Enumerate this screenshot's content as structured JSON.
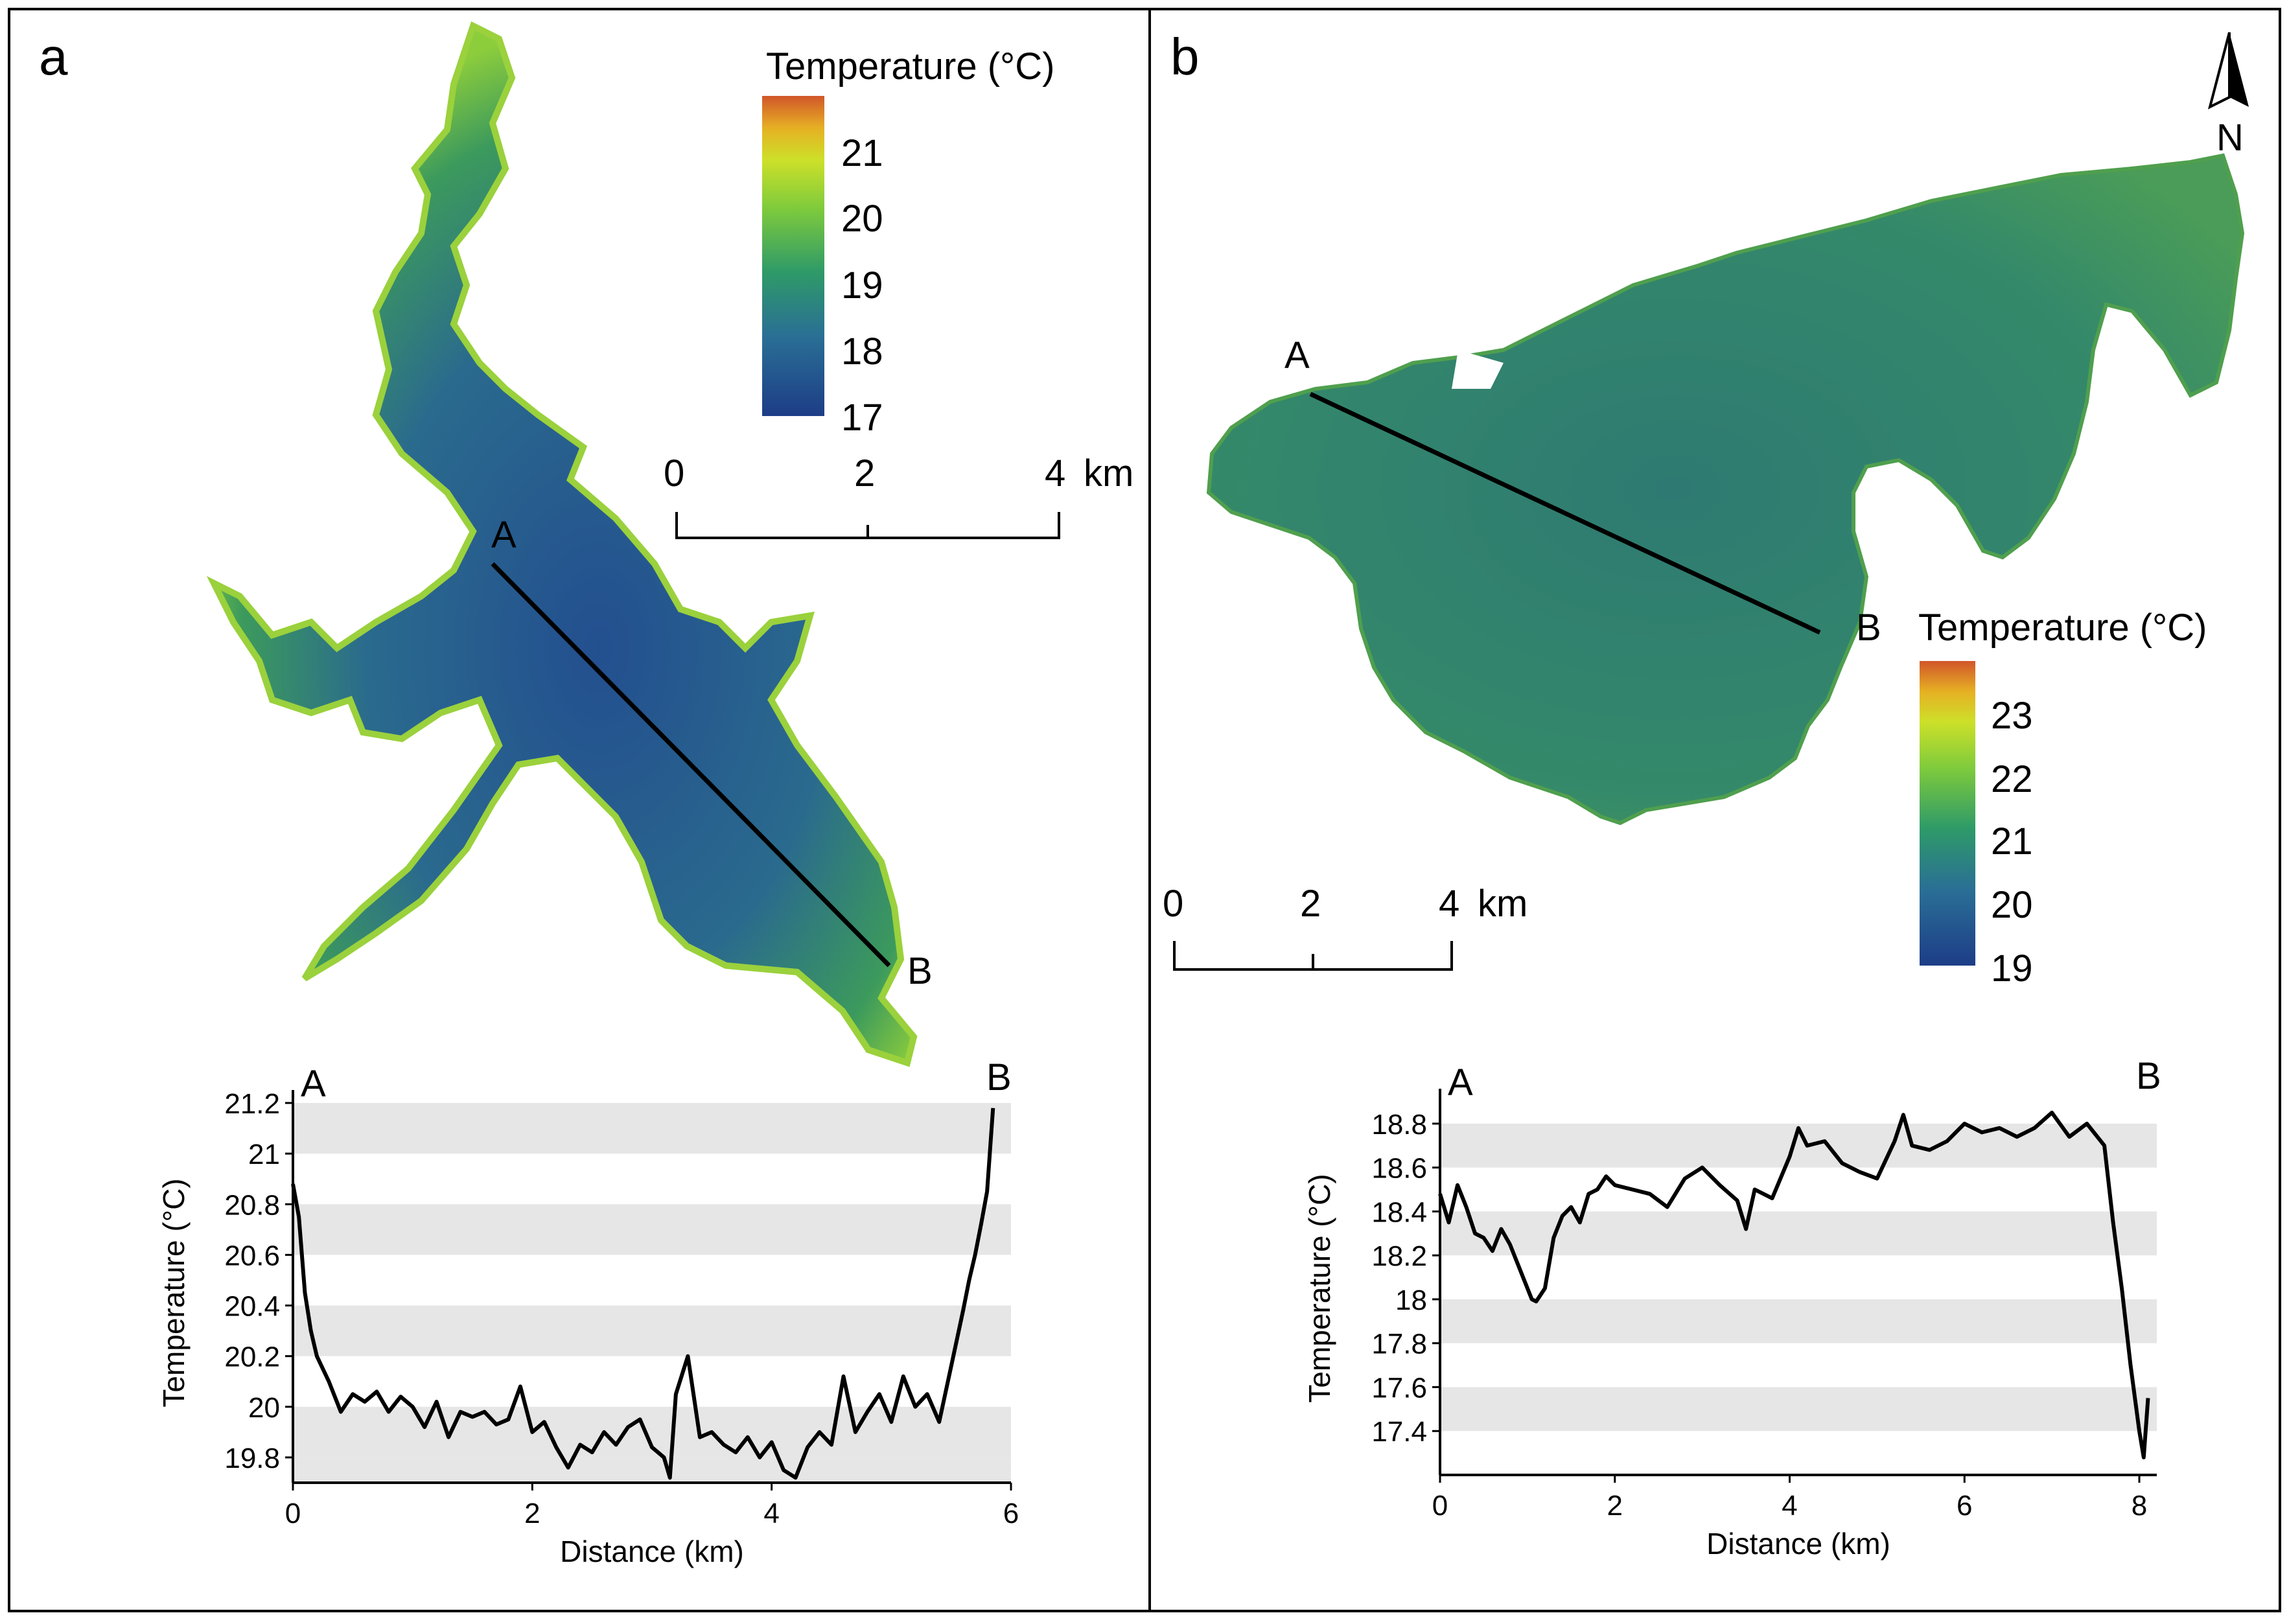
{
  "panels": [
    {
      "letter": "a",
      "colorbar": {
        "title": "Temperature (°C)",
        "ticks": [
          "21",
          "20",
          "19",
          "18",
          "17"
        ]
      },
      "scalebar": {
        "labels": [
          "0",
          "2",
          "4"
        ],
        "unit": "km"
      },
      "transect": {
        "start": "A",
        "end": "B"
      }
    },
    {
      "letter": "b",
      "colorbar": {
        "title": "Temperature (°C)",
        "ticks": [
          "23",
          "22",
          "21",
          "20",
          "19"
        ]
      },
      "scalebar": {
        "labels": [
          "0",
          "2",
          "4"
        ],
        "unit": "km"
      },
      "transect": {
        "start": "A",
        "end": "B"
      },
      "north_arrow": "N"
    }
  ],
  "colors": {
    "line": "#000000",
    "band": "#e6e6e6",
    "deep": "#1f4f8c",
    "mid": "#2e8a5c",
    "shallow": "#8ccd3c",
    "warm": "#e0b020",
    "hot": "#cc5a2a"
  },
  "chart_data": [
    {
      "type": "line",
      "panel": "a",
      "title": "",
      "xlabel": "Distance (km)",
      "ylabel": "Temperature (°C)",
      "xlim": [
        0,
        6
      ],
      "ylim": [
        19.7,
        21.2
      ],
      "xticks": [
        0,
        2,
        4,
        6
      ],
      "yticks": [
        19.8,
        20,
        20.2,
        20.4,
        20.6,
        20.8,
        21,
        21.2
      ],
      "grid": "alternating horizontal bands",
      "end_labels": [
        "A",
        "B"
      ],
      "x": [
        0,
        0.05,
        0.1,
        0.15,
        0.2,
        0.3,
        0.4,
        0.5,
        0.6,
        0.7,
        0.8,
        0.9,
        1.0,
        1.1,
        1.2,
        1.3,
        1.4,
        1.5,
        1.6,
        1.7,
        1.8,
        1.9,
        2.0,
        2.1,
        2.2,
        2.3,
        2.4,
        2.5,
        2.6,
        2.7,
        2.8,
        2.9,
        3.0,
        3.1,
        3.15,
        3.2,
        3.3,
        3.4,
        3.5,
        3.6,
        3.7,
        3.8,
        3.9,
        4.0,
        4.1,
        4.2,
        4.3,
        4.4,
        4.5,
        4.6,
        4.7,
        4.8,
        4.9,
        5.0,
        5.1,
        5.2,
        5.3,
        5.4,
        5.5,
        5.6,
        5.65,
        5.7,
        5.75,
        5.8,
        5.85
      ],
      "values": [
        20.88,
        20.75,
        20.45,
        20.3,
        20.2,
        20.1,
        19.98,
        20.05,
        20.02,
        20.06,
        19.98,
        20.04,
        20.0,
        19.92,
        20.02,
        19.88,
        19.98,
        19.96,
        19.98,
        19.93,
        19.95,
        20.08,
        19.9,
        19.94,
        19.84,
        19.76,
        19.85,
        19.82,
        19.9,
        19.85,
        19.92,
        19.95,
        19.84,
        19.8,
        19.72,
        20.05,
        20.2,
        19.88,
        19.9,
        19.85,
        19.82,
        19.88,
        19.8,
        19.86,
        19.75,
        19.72,
        19.84,
        19.9,
        19.85,
        20.12,
        19.9,
        19.98,
        20.05,
        19.94,
        20.12,
        20.0,
        20.05,
        19.94,
        20.16,
        20.38,
        20.5,
        20.6,
        20.72,
        20.85,
        21.18
      ]
    },
    {
      "type": "line",
      "panel": "b",
      "title": "",
      "xlabel": "Distance (km)",
      "ylabel": "Temperature (°C)",
      "xlim": [
        0,
        8.2
      ],
      "ylim": [
        17.2,
        18.9
      ],
      "xticks": [
        0,
        2,
        4,
        6,
        8
      ],
      "yticks": [
        17.4,
        17.6,
        17.8,
        18,
        18.2,
        18.4,
        18.6,
        18.8
      ],
      "grid": "alternating horizontal bands",
      "end_labels": [
        "A",
        "B"
      ],
      "x": [
        0,
        0.1,
        0.2,
        0.3,
        0.4,
        0.5,
        0.6,
        0.7,
        0.8,
        0.9,
        1.0,
        1.05,
        1.1,
        1.2,
        1.3,
        1.4,
        1.5,
        1.6,
        1.7,
        1.8,
        1.9,
        2.0,
        2.2,
        2.4,
        2.6,
        2.8,
        3.0,
        3.2,
        3.4,
        3.5,
        3.6,
        3.8,
        4.0,
        4.1,
        4.2,
        4.4,
        4.6,
        4.8,
        5.0,
        5.2,
        5.3,
        5.4,
        5.6,
        5.8,
        6.0,
        6.2,
        6.4,
        6.6,
        6.8,
        7.0,
        7.2,
        7.4,
        7.6,
        7.7,
        7.8,
        7.9,
        8.0,
        8.05,
        8.1
      ],
      "values": [
        18.48,
        18.35,
        18.52,
        18.42,
        18.3,
        18.28,
        18.22,
        18.32,
        18.25,
        18.15,
        18.05,
        18.0,
        17.99,
        18.05,
        18.28,
        18.38,
        18.42,
        18.35,
        18.48,
        18.5,
        18.56,
        18.52,
        18.5,
        18.48,
        18.42,
        18.55,
        18.6,
        18.52,
        18.45,
        18.32,
        18.5,
        18.46,
        18.65,
        18.78,
        18.7,
        18.72,
        18.62,
        18.58,
        18.55,
        18.72,
        18.84,
        18.7,
        18.68,
        18.72,
        18.8,
        18.76,
        18.78,
        18.74,
        18.78,
        18.85,
        18.74,
        18.8,
        18.7,
        18.35,
        18.05,
        17.7,
        17.4,
        17.28,
        17.55
      ]
    }
  ]
}
